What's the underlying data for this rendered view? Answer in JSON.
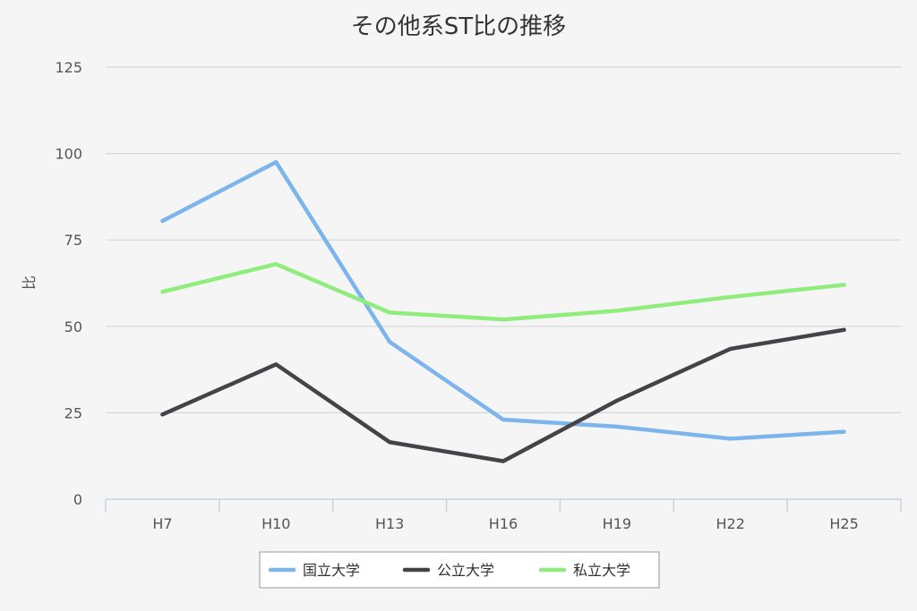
{
  "chart_data": {
    "type": "line",
    "title": "その他系ST比の推移",
    "ylabel": "比",
    "xlabel": "",
    "categories": [
      "H7",
      "H10",
      "H13",
      "H16",
      "H19",
      "H22",
      "H25"
    ],
    "ylim": [
      0,
      125
    ],
    "yticks": [
      "0",
      "25",
      "50",
      "75",
      "100",
      "125"
    ],
    "grid": true,
    "legend_position": "bottom",
    "series": [
      {
        "name": "国立大学",
        "color": "#7cb5ec",
        "values": [
          80.5,
          97.5,
          45.5,
          23,
          21,
          17.5,
          19.5
        ]
      },
      {
        "name": "公立大学",
        "color": "#434348",
        "values": [
          24.5,
          39,
          16.5,
          11,
          28.5,
          43.5,
          49
        ]
      },
      {
        "name": "私立大学",
        "color": "#90ed7d",
        "values": [
          60,
          68,
          54,
          52,
          54.5,
          58.5,
          62
        ]
      }
    ]
  }
}
